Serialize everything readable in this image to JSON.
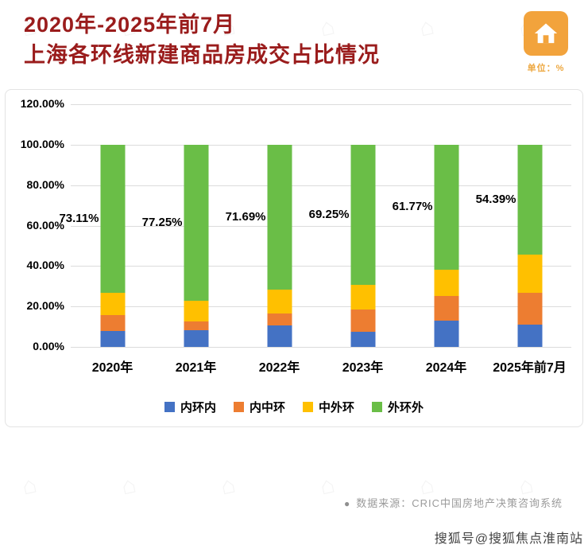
{
  "header": {
    "title_line1": "2020年-2025年前7月",
    "title_line2": "上海各环线新建商品房成交占比情况",
    "unit_label": "单位：%"
  },
  "chart_data": {
    "type": "bar",
    "stacked": true,
    "title": "2020年-2025年前7月上海各环线新建商品房成交占比情况",
    "categories": [
      "2020年",
      "2021年",
      "2022年",
      "2023年",
      "2024年",
      "2025年前7月"
    ],
    "series": [
      {
        "name": "内环内",
        "key": "inner-ring",
        "color": "#4472C4",
        "values": [
          7.9,
          8.2,
          10.7,
          7.5,
          13.0,
          11.1
        ]
      },
      {
        "name": "内中环",
        "key": "inner-middle-ring",
        "color": "#ED7D31",
        "values": [
          8.0,
          4.5,
          5.9,
          11.0,
          12.0,
          15.8
        ]
      },
      {
        "name": "中外环",
        "key": "middle-outer-ring",
        "color": "#FFC000",
        "values": [
          10.99,
          10.05,
          11.71,
          12.25,
          13.23,
          18.71
        ]
      },
      {
        "name": "外环外",
        "key": "outer-ring",
        "color": "#6ABE47",
        "values": [
          73.11,
          77.25,
          71.69,
          69.25,
          61.77,
          54.39
        ]
      }
    ],
    "data_labels": [
      "73.11%",
      "77.25%",
      "71.69%",
      "69.25%",
      "61.77%",
      "54.39%"
    ],
    "data_label_series": "外环外",
    "ylim": [
      0,
      120
    ],
    "ytick_labels": [
      "120.00%",
      "100.00%",
      "80.00%",
      "60.00%",
      "40.00%",
      "20.00%",
      "0.00%"
    ],
    "grid": true,
    "legend_position": "bottom"
  },
  "footer": {
    "source_bullet": "●",
    "source_text": "数据来源：CRIC中国房地产决策咨询系统"
  },
  "watermark": {
    "text": "搜狐号@搜狐焦点淮南站",
    "glyph": "⌂"
  },
  "colors": {
    "title": "#9A1C1C",
    "unit_badge": "#F2A33C",
    "unit_text": "#EDA73F",
    "grid": "#DCDCDC",
    "source_text": "#9B9B9B"
  }
}
